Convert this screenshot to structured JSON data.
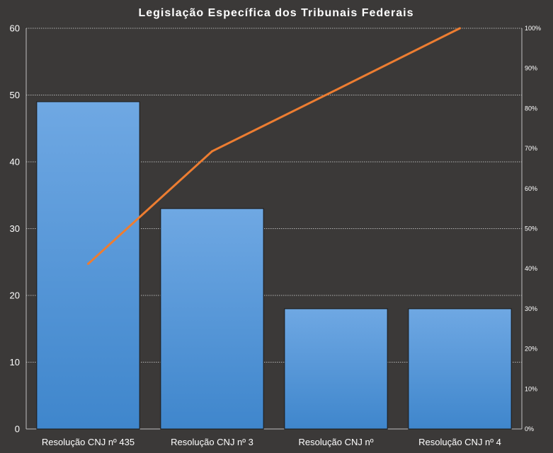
{
  "chart_data": {
    "type": "bar",
    "title": "Legislação Específica dos Tribunais Federais",
    "categories": [
      "Resolução CNJ nº 435",
      "Resolução CNJ nº 3",
      "Resolução CNJ nº",
      "Resolução CNJ nº 4"
    ],
    "series": [
      {
        "type": "bar",
        "values": [
          49,
          33,
          18,
          18
        ],
        "color": "#5b9ee0"
      },
      {
        "type": "line",
        "axis": "right",
        "values": [
          41.2,
          69.3,
          84.6,
          100
        ],
        "color": "#ed7d31"
      }
    ],
    "ylim": [
      0,
      60
    ],
    "y_ticks": [
      "0",
      "10",
      "20",
      "30",
      "40",
      "50",
      "60"
    ],
    "y2lim": [
      0,
      100
    ],
    "y2_ticks": [
      "0%",
      "10%",
      "20%",
      "30%",
      "40%",
      "50%",
      "60%",
      "70%",
      "80%",
      "90%",
      "100%"
    ],
    "grid": true,
    "legend": "none"
  }
}
